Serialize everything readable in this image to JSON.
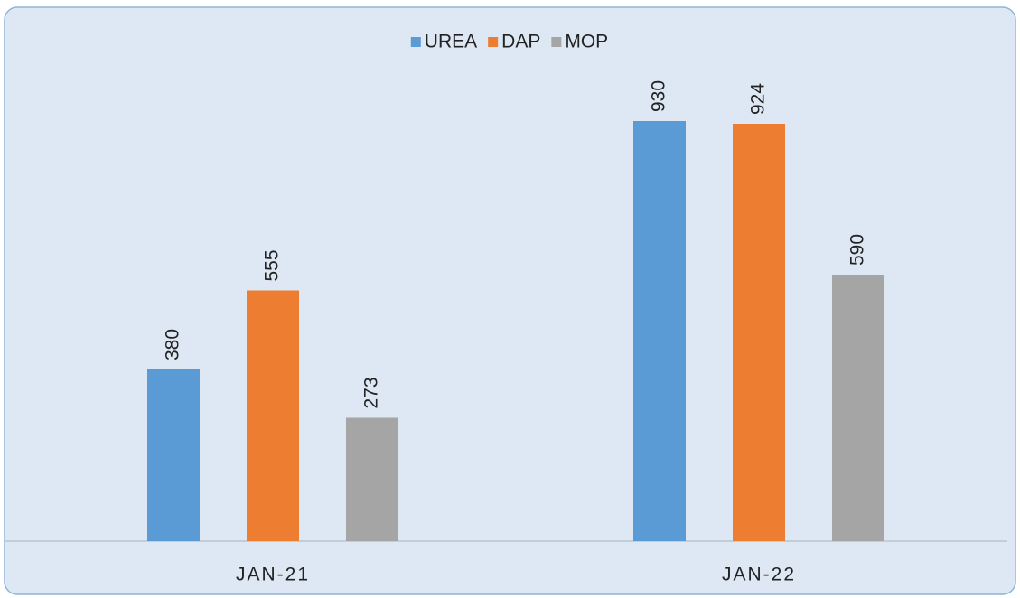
{
  "chart_data": {
    "type": "bar",
    "categories": [
      "JAN-21",
      "JAN-22"
    ],
    "series": [
      {
        "name": "UREA",
        "color": "#5b9bd5",
        "values": [
          380,
          930
        ]
      },
      {
        "name": "DAP",
        "color": "#ed7d31",
        "values": [
          555,
          924
        ]
      },
      {
        "name": "MOP",
        "color": "#a5a5a5",
        "values": [
          273,
          590
        ]
      }
    ],
    "ylim": [
      0,
      1000
    ],
    "legend": "top"
  }
}
